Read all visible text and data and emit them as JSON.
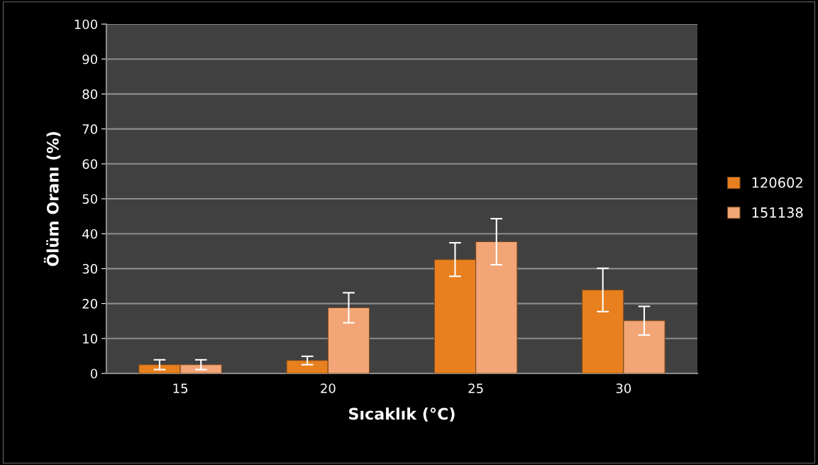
{
  "chart_data": {
    "type": "bar",
    "xlabel": "Sıcaklık (°C)",
    "ylabel": "Ölüm Oranı (%)",
    "categories": [
      "15",
      "20",
      "25",
      "30"
    ],
    "series": [
      {
        "name": "120602",
        "color": "#e8801f",
        "values": [
          2.5,
          3.7,
          32.6,
          23.9
        ],
        "errors": [
          1.4,
          1.2,
          4.8,
          6.2
        ]
      },
      {
        "name": "151138",
        "color": "#f2a576",
        "values": [
          2.5,
          18.8,
          37.7,
          15.1
        ],
        "errors": [
          1.4,
          4.3,
          6.6,
          4.1
        ]
      }
    ],
    "ylim": [
      0,
      100
    ],
    "yticks": [
      0,
      10,
      20,
      30,
      40,
      50,
      60,
      70,
      80,
      90,
      100
    ],
    "grid": "y",
    "legend": "right"
  }
}
